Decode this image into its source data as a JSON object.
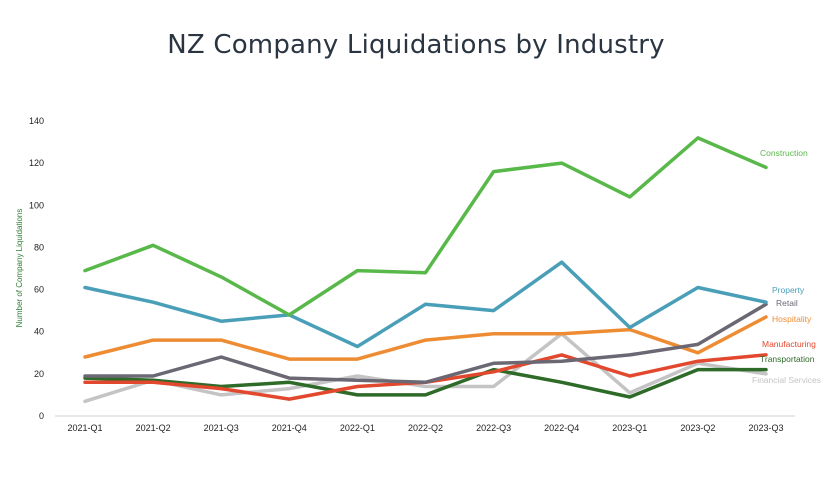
{
  "chart_data": {
    "type": "line",
    "title": "NZ Company Liquidations by Industry",
    "ylabel": "Number of Company Liquidations",
    "xlabel": "",
    "categories": [
      "2021-Q1",
      "2021-Q2",
      "2021-Q3",
      "2021-Q4",
      "2022-Q1",
      "2022-Q2",
      "2022-Q3",
      "2022-Q4",
      "2023-Q1",
      "2023-Q2",
      "2023-Q3"
    ],
    "ylim": [
      0,
      140
    ],
    "yticks": [
      0,
      20,
      40,
      60,
      80,
      100,
      120,
      140
    ],
    "grid": false,
    "legend": "end-of-line labels",
    "series": [
      {
        "name": "Construction",
        "color": "#59b84a",
        "values": [
          69,
          81,
          66,
          48,
          69,
          68,
          116,
          120,
          104,
          132,
          118
        ]
      },
      {
        "name": "Property",
        "color": "#4a9fb8",
        "values": [
          61,
          54,
          45,
          48,
          33,
          53,
          50,
          73,
          42,
          61,
          54
        ]
      },
      {
        "name": "Retail",
        "color": "#6b6874",
        "values": [
          19,
          19,
          28,
          18,
          17,
          16,
          25,
          26,
          29,
          34,
          53
        ]
      },
      {
        "name": "Hospitality",
        "color": "#ee8c34",
        "values": [
          28,
          36,
          36,
          27,
          27,
          36,
          39,
          39,
          41,
          30,
          47
        ]
      },
      {
        "name": "Manufacturing",
        "color": "#e2482e",
        "values": [
          16,
          16,
          13,
          8,
          14,
          16,
          21,
          29,
          19,
          26,
          29
        ]
      },
      {
        "name": "Transportation",
        "color": "#2e6a28",
        "values": [
          18,
          17,
          14,
          16,
          10,
          10,
          22,
          16,
          9,
          22,
          22
        ]
      },
      {
        "name": "Financial Services",
        "color": "#c4c4c4",
        "values": [
          7,
          17,
          10,
          13,
          19,
          14,
          14,
          39,
          11,
          25,
          20
        ]
      }
    ]
  }
}
